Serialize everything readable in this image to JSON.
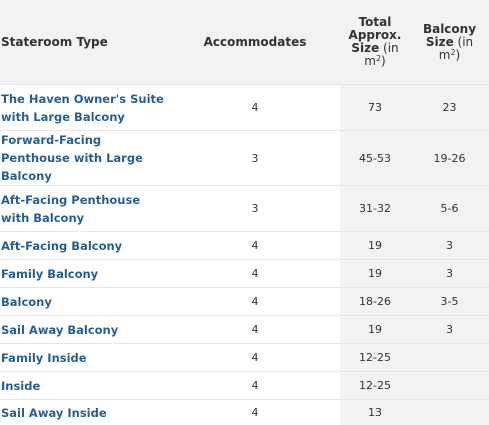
{
  "table": {
    "headers": {
      "type": "Stateroom Type",
      "accommodates": "Accommodates",
      "total_l1": "Total",
      "total_l2": "Approx.",
      "total_l3a": "Size",
      "total_l3b": " (in",
      "total_unit": "m",
      "total_sup": "2",
      "total_close": ")",
      "balcony_l1": "Balcony",
      "balcony_l2a": "Size",
      "balcony_l2b": " (in",
      "balcony_unit": "m",
      "balcony_sup": "2",
      "balcony_close": ")"
    },
    "rows": [
      {
        "name": "The Haven Owner's Suite with Large Balcony",
        "accommodates": "4",
        "total": "73",
        "balcony": "23"
      },
      {
        "name": "Forward-Facing Penthouse with Large Balcony",
        "accommodates": "3",
        "total": "45-53",
        "balcony": "19-26"
      },
      {
        "name": "Aft-Facing Penthouse with Balcony",
        "accommodates": "3",
        "total": "31-32",
        "balcony": "5-6"
      },
      {
        "name": "Aft-Facing Balcony",
        "accommodates": "4",
        "total": "19",
        "balcony": "3"
      },
      {
        "name": "Family Balcony",
        "accommodates": "4",
        "total": "19",
        "balcony": "3"
      },
      {
        "name": "Balcony",
        "accommodates": "4",
        "total": "18-26",
        "balcony": "3-5"
      },
      {
        "name": "Sail Away Balcony",
        "accommodates": "4",
        "total": "19",
        "balcony": "3"
      },
      {
        "name": "Family Inside",
        "accommodates": "4",
        "total": "12-25",
        "balcony": ""
      },
      {
        "name": "Inside",
        "accommodates": "4",
        "total": "12-25",
        "balcony": ""
      },
      {
        "name": "Sail Away Inside",
        "accommodates": "4",
        "total": "13",
        "balcony": ""
      }
    ]
  }
}
